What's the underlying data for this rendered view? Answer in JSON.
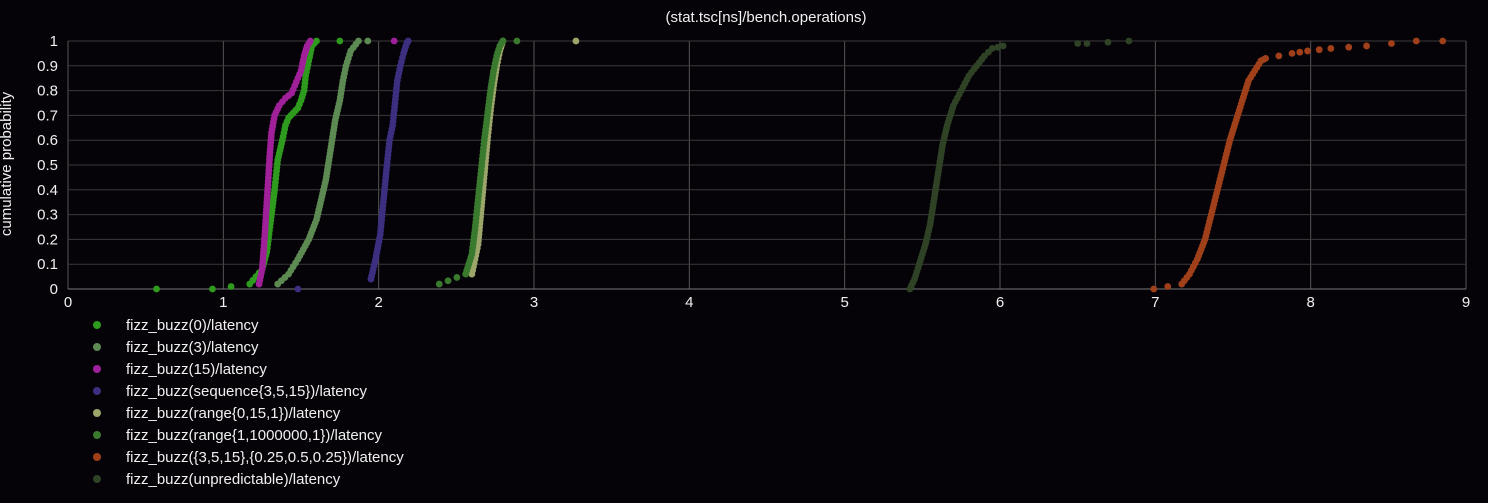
{
  "chart_data": {
    "type": "scatter",
    "title": "(stat.tsc[ns]/bench.operations)",
    "xlabel": "",
    "ylabel": "cumulative probability",
    "xlim": [
      0,
      9
    ],
    "ylim": [
      0,
      1
    ],
    "xticks": [
      "0",
      "1",
      "2",
      "3",
      "4",
      "5",
      "6",
      "7",
      "8",
      "9"
    ],
    "yticks": [
      "0",
      "0.1",
      "0.2",
      "0.3",
      "0.4",
      "0.5",
      "0.6",
      "0.7",
      "0.8",
      "0.9",
      "1"
    ],
    "grid": true,
    "legend_position": "bottom-left",
    "series": [
      {
        "name": "fizz_buzz(0)/latency",
        "color": "#2e9a1e",
        "x": [
          0.57,
          0.93,
          1.17,
          1.25,
          1.28,
          1.3,
          1.33,
          1.35,
          1.38,
          1.4,
          1.42,
          1.45,
          1.48,
          1.5,
          1.52,
          1.53,
          1.55,
          1.57,
          1.6,
          1.75
        ],
        "y": [
          0.0,
          0.0,
          0.02,
          0.08,
          0.15,
          0.25,
          0.4,
          0.52,
          0.6,
          0.66,
          0.69,
          0.71,
          0.73,
          0.76,
          0.8,
          0.86,
          0.92,
          0.98,
          1.0,
          1.0
        ]
      },
      {
        "name": "fizz_buzz(3)/latency",
        "color": "#5d8a52",
        "x": [
          1.35,
          1.42,
          1.48,
          1.55,
          1.6,
          1.63,
          1.66,
          1.68,
          1.7,
          1.72,
          1.75,
          1.77,
          1.79,
          1.82,
          1.87,
          1.93
        ],
        "y": [
          0.02,
          0.06,
          0.12,
          0.2,
          0.28,
          0.36,
          0.44,
          0.52,
          0.6,
          0.68,
          0.76,
          0.84,
          0.9,
          0.96,
          1.0,
          1.0
        ]
      },
      {
        "name": "fizz_buzz(15)/latency",
        "color": "#a0209a",
        "x": [
          1.23,
          1.25,
          1.26,
          1.27,
          1.28,
          1.29,
          1.3,
          1.31,
          1.33,
          1.36,
          1.4,
          1.44,
          1.46,
          1.48,
          1.5,
          1.51,
          1.52,
          1.53,
          1.54,
          1.56,
          2.1
        ],
        "y": [
          0.02,
          0.08,
          0.16,
          0.25,
          0.35,
          0.45,
          0.55,
          0.63,
          0.7,
          0.74,
          0.77,
          0.79,
          0.82,
          0.85,
          0.88,
          0.91,
          0.94,
          0.96,
          0.98,
          1.0,
          1.0
        ]
      },
      {
        "name": "fizz_buzz(sequence{3,5,15})/latency",
        "color": "#3c2f80",
        "x": [
          1.48,
          1.95,
          1.98,
          2.01,
          2.03,
          2.05,
          2.07,
          2.09,
          2.1,
          2.11,
          2.12,
          2.14,
          2.16,
          2.18,
          2.19
        ],
        "y": [
          0.0,
          0.04,
          0.12,
          0.22,
          0.35,
          0.48,
          0.6,
          0.66,
          0.72,
          0.78,
          0.84,
          0.9,
          0.95,
          0.99,
          1.0
        ]
      },
      {
        "name": "fizz_buzz(range{0,15,1})/latency",
        "color": "#9da66a",
        "x": [
          2.6,
          2.64,
          2.66,
          2.68,
          2.7,
          2.72,
          2.74,
          2.76,
          2.78,
          2.8,
          3.27
        ],
        "y": [
          0.06,
          0.18,
          0.32,
          0.46,
          0.6,
          0.72,
          0.82,
          0.9,
          0.96,
          1.0,
          1.0
        ]
      },
      {
        "name": "fizz_buzz(range{1,1000000,1})/latency",
        "color": "#3a7a2e",
        "x": [
          2.39,
          2.56,
          2.6,
          2.62,
          2.64,
          2.66,
          2.68,
          2.7,
          2.72,
          2.74,
          2.76,
          2.78,
          2.8,
          2.89
        ],
        "y": [
          0.02,
          0.06,
          0.14,
          0.24,
          0.36,
          0.48,
          0.6,
          0.7,
          0.8,
          0.88,
          0.94,
          0.98,
          1.0,
          1.0
        ]
      },
      {
        "name": "fizz_buzz({3,5,15},{0.25,0.5,0.25})/latency",
        "color": "#a0401a",
        "x": [
          6.99,
          7.17,
          7.22,
          7.27,
          7.32,
          7.36,
          7.4,
          7.44,
          7.48,
          7.52,
          7.56,
          7.6,
          7.64,
          7.68,
          7.71,
          7.88,
          7.98,
          8.13,
          8.36,
          8.68,
          8.85
        ],
        "y": [
          0.0,
          0.02,
          0.06,
          0.12,
          0.2,
          0.3,
          0.4,
          0.5,
          0.6,
          0.68,
          0.76,
          0.84,
          0.88,
          0.92,
          0.93,
          0.95,
          0.96,
          0.97,
          0.98,
          1.0,
          1.0
        ]
      },
      {
        "name": "fizz_buzz(unpredictable)/latency",
        "color": "#2f4225",
        "x": [
          5.42,
          5.45,
          5.48,
          5.52,
          5.55,
          5.57,
          5.59,
          5.61,
          5.63,
          5.66,
          5.7,
          5.75,
          5.8,
          5.85,
          5.9,
          5.95,
          6.02,
          6.5,
          6.56,
          6.83
        ],
        "y": [
          0.0,
          0.04,
          0.1,
          0.18,
          0.26,
          0.34,
          0.42,
          0.5,
          0.58,
          0.66,
          0.74,
          0.8,
          0.86,
          0.9,
          0.94,
          0.97,
          0.98,
          0.99,
          0.99,
          1.0
        ]
      }
    ]
  }
}
